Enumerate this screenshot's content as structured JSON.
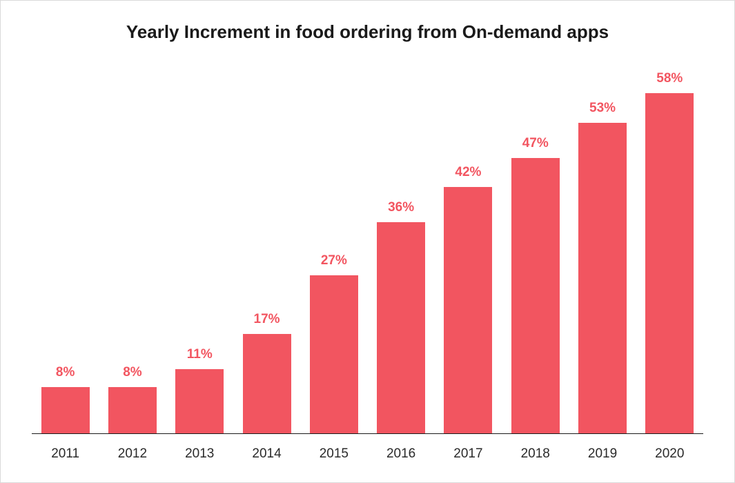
{
  "chart": {
    "type": "bar",
    "title": "Yearly Increment in food ordering from On-demand apps",
    "title_fontsize": 26,
    "title_fontweight": 700,
    "title_color": "#1a1a1a",
    "categories": [
      "2011",
      "2012",
      "2013",
      "2014",
      "2015",
      "2016",
      "2017",
      "2018",
      "2019",
      "2020"
    ],
    "values": [
      8,
      8,
      11,
      17,
      27,
      36,
      42,
      47,
      53,
      58
    ],
    "value_labels": [
      "8%",
      "8%",
      "11%",
      "17%",
      "27%",
      "36%",
      "42%",
      "47%",
      "53%",
      "58%"
    ],
    "y_max": 62,
    "bar_color": "#f25560",
    "value_label_color": "#f25560",
    "value_label_fontsize": 19,
    "value_label_fontweight": 700,
    "xaxis_label_fontsize": 19,
    "xaxis_label_color": "#2a2a2a",
    "baseline_color": "#1a1a1a",
    "background_color": "#ffffff",
    "border_color": "#d9d9d9",
    "bar_width_ratio": 0.72
  }
}
